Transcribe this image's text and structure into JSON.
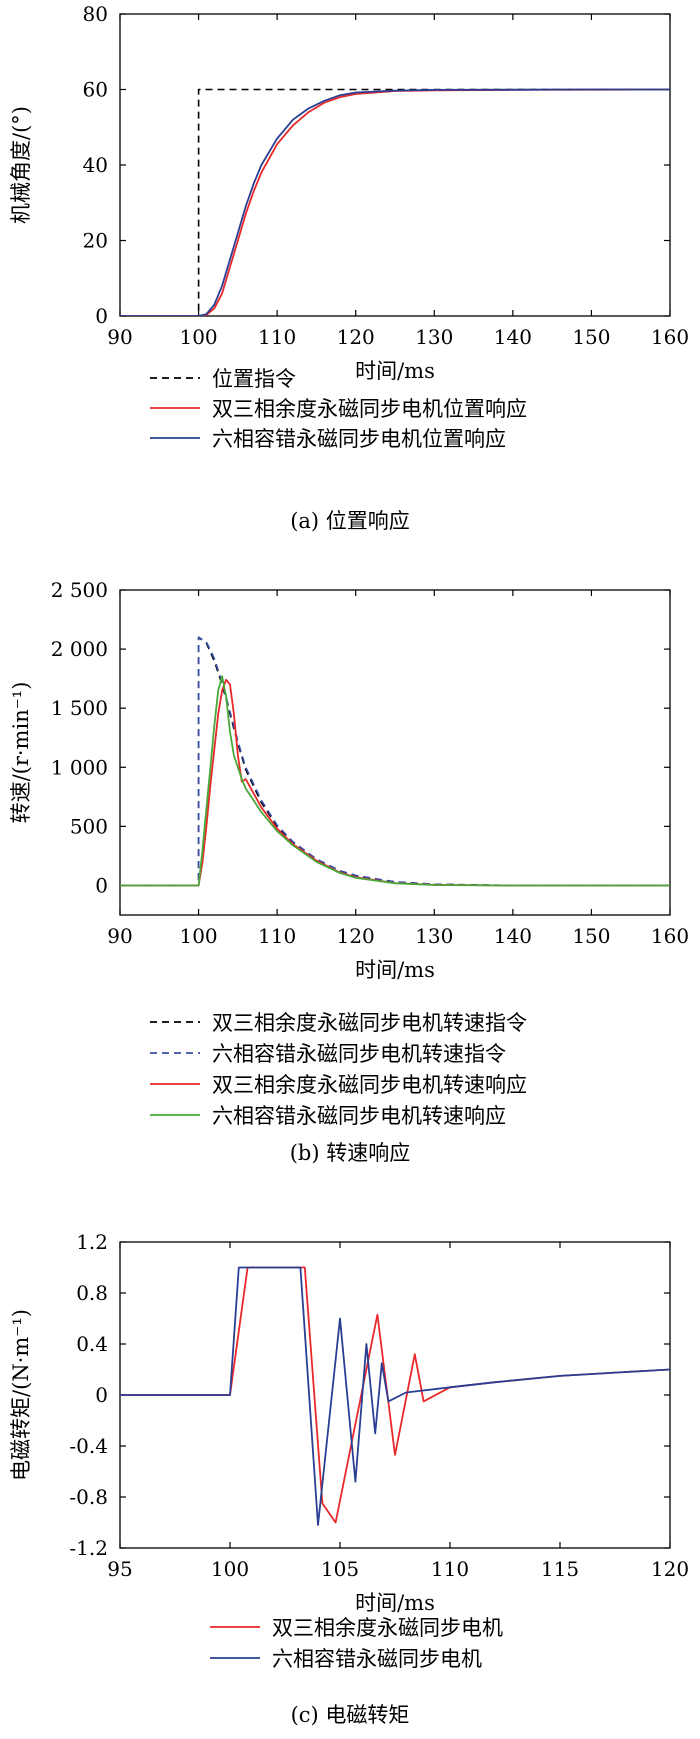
{
  "chart_data": [
    {
      "type": "line",
      "caption": "(a) 位置响应",
      "xlabel": "时间/ms",
      "ylabel": "机械角度/(°)",
      "xlim": [
        90,
        160
      ],
      "ylim": [
        0,
        80
      ],
      "xticks": [
        "90",
        "100",
        "110",
        "120",
        "130",
        "140",
        "150",
        "160"
      ],
      "yticks": [
        "0",
        "20",
        "40",
        "60",
        "80"
      ],
      "grid": false,
      "legend_position": "below",
      "series": [
        {
          "name": "位置指令",
          "color": "#000000",
          "dash": true,
          "x": [
            90,
            100,
            100,
            160
          ],
          "y": [
            0,
            0,
            60,
            60
          ]
        },
        {
          "name": "双三相余度永磁同步电机位置响应",
          "color": "#e8282a",
          "dash": false,
          "x": [
            90,
            100,
            101,
            102,
            103,
            104,
            105,
            106,
            107,
            108,
            110,
            112,
            114,
            116,
            118,
            120,
            125,
            130,
            140,
            150,
            160
          ],
          "y": [
            0,
            0,
            0.3,
            2,
            6,
            13,
            20,
            27,
            33,
            38,
            45.5,
            50.5,
            54,
            56.5,
            58,
            58.8,
            59.6,
            59.8,
            59.9,
            59.95,
            60
          ]
        },
        {
          "name": "六相容错永磁同步电机位置响应",
          "color": "#2a3f93",
          "dash": false,
          "x": [
            90,
            100,
            101,
            102,
            103,
            104,
            105,
            106,
            107,
            108,
            110,
            112,
            114,
            116,
            118,
            120,
            125,
            130,
            140,
            150,
            160
          ],
          "y": [
            0,
            0,
            0.5,
            3,
            8,
            15,
            22,
            29,
            35,
            40,
            47,
            52,
            55,
            57,
            58.5,
            59.2,
            59.7,
            59.9,
            59.95,
            60,
            60
          ]
        }
      ]
    },
    {
      "type": "line",
      "caption": "(b) 转速响应",
      "xlabel": "时间/ms",
      "ylabel": "转速/(r·min⁻¹)",
      "xlim": [
        90,
        160
      ],
      "ylim": [
        -250,
        2500
      ],
      "xticks": [
        "90",
        "100",
        "110",
        "120",
        "130",
        "140",
        "150",
        "160"
      ],
      "yticks": [
        "0",
        "500",
        "1 000",
        "1 500",
        "2 000",
        "2 500"
      ],
      "grid": false,
      "legend_position": "below",
      "series": [
        {
          "name": "双三相余度永磁同步电机转速指令",
          "color": "#000000",
          "dash": true,
          "x": [
            90,
            100,
            100,
            101,
            102,
            103,
            104,
            105,
            106,
            108,
            110,
            112,
            115,
            118,
            120,
            125,
            130,
            140,
            150,
            160
          ],
          "y": [
            0,
            0,
            2100,
            2050,
            1900,
            1700,
            1450,
            1200,
            980,
            700,
            500,
            360,
            220,
            120,
            80,
            30,
            10,
            0,
            0,
            0
          ]
        },
        {
          "name": "六相容错永磁同步电机转速指令",
          "color": "#3b4fa8",
          "dash": true,
          "x": [
            90,
            100,
            100,
            101,
            102,
            103,
            104,
            105,
            106,
            108,
            110,
            112,
            115,
            118,
            120,
            125,
            130,
            140,
            150,
            160
          ],
          "y": [
            0,
            0,
            2100,
            2060,
            1920,
            1720,
            1470,
            1220,
            1000,
            720,
            510,
            370,
            225,
            125,
            85,
            30,
            10,
            0,
            0,
            0
          ]
        },
        {
          "name": "双三相余度永磁同步电机转速响应",
          "color": "#e8282a",
          "dash": false,
          "x": [
            90,
            100,
            100.5,
            101,
            101.5,
            102,
            102.5,
            103,
            103.5,
            104,
            104.5,
            105,
            105.5,
            106,
            107,
            108,
            110,
            112,
            115,
            118,
            120,
            125,
            130,
            140,
            150,
            160
          ],
          "y": [
            0,
            0,
            200,
            500,
            850,
            1150,
            1450,
            1650,
            1740,
            1700,
            1450,
            1100,
            880,
            900,
            780,
            660,
            480,
            350,
            210,
            110,
            70,
            20,
            5,
            0,
            0,
            0
          ]
        },
        {
          "name": "六相容错永磁同步电机转速响应",
          "color": "#4aa83a",
          "dash": false,
          "x": [
            90,
            100,
            100.5,
            101,
            101.5,
            102,
            102.5,
            103,
            103.5,
            104,
            104.5,
            105,
            105.5,
            106,
            107,
            108,
            110,
            112,
            115,
            118,
            120,
            125,
            130,
            140,
            150,
            160
          ],
          "y": [
            0,
            0,
            300,
            650,
            1000,
            1350,
            1650,
            1770,
            1600,
            1300,
            1100,
            1000,
            900,
            820,
            720,
            620,
            460,
            340,
            200,
            105,
            65,
            18,
            4,
            0,
            0,
            0
          ]
        }
      ]
    },
    {
      "type": "line",
      "caption": "(c) 电磁转矩",
      "xlabel": "时间/ms",
      "ylabel": "电磁转矩/(N·m⁻¹)",
      "xlim": [
        95,
        120
      ],
      "ylim": [
        -1.2,
        1.2
      ],
      "xticks": [
        "95",
        "100",
        "105",
        "110",
        "115",
        "120"
      ],
      "yticks": [
        "-1.2",
        "-0.8",
        "-0.4",
        "0",
        "0.4",
        "0.8",
        "1.2"
      ],
      "grid": false,
      "legend_position": "below",
      "series": [
        {
          "name": "双三相余度永磁同步电机",
          "color": "#e8282a",
          "dash": false,
          "x": [
            95,
            100,
            100.8,
            103.4,
            104.2,
            104.8,
            106.7,
            107.5,
            108.4,
            108.8,
            110,
            112,
            115,
            118,
            120
          ],
          "y": [
            0,
            0,
            1.0,
            1.0,
            -0.85,
            -1.0,
            0.63,
            -0.47,
            0.32,
            -0.05,
            0.06,
            0.1,
            0.15,
            0.18,
            0.2
          ]
        },
        {
          "name": "六相容错永磁同步电机",
          "color": "#2a3f93",
          "dash": false,
          "x": [
            95,
            100,
            100.4,
            103.2,
            104,
            105,
            105.7,
            106.2,
            106.6,
            106.9,
            107.2,
            108,
            110,
            112,
            115,
            118,
            120
          ],
          "y": [
            0,
            0,
            1.0,
            1.0,
            -1.02,
            0.6,
            -0.68,
            0.4,
            -0.3,
            0.25,
            -0.05,
            0.02,
            0.06,
            0.1,
            0.15,
            0.18,
            0.2
          ]
        }
      ]
    }
  ]
}
